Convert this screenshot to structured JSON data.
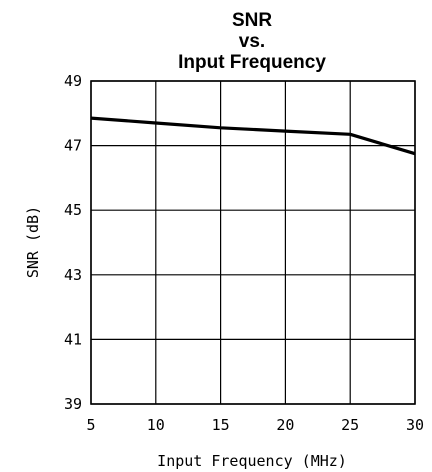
{
  "chart_data": {
    "type": "line",
    "title": [
      "SNR",
      "vs.",
      "Input Frequency"
    ],
    "xlabel": "Input Frequency (MHz)",
    "ylabel": "SNR (dB)",
    "xlim": [
      5,
      30
    ],
    "ylim": [
      39,
      49
    ],
    "xticks": [
      5,
      10,
      15,
      20,
      25,
      30
    ],
    "yticks": [
      39,
      41,
      43,
      45,
      47,
      49
    ],
    "grid": true,
    "series": [
      {
        "x": [
          5,
          10,
          15,
          20,
          25,
          30
        ],
        "y": [
          47.85,
          47.7,
          47.55,
          47.45,
          47.35,
          46.75
        ]
      }
    ],
    "color": "#000000"
  }
}
